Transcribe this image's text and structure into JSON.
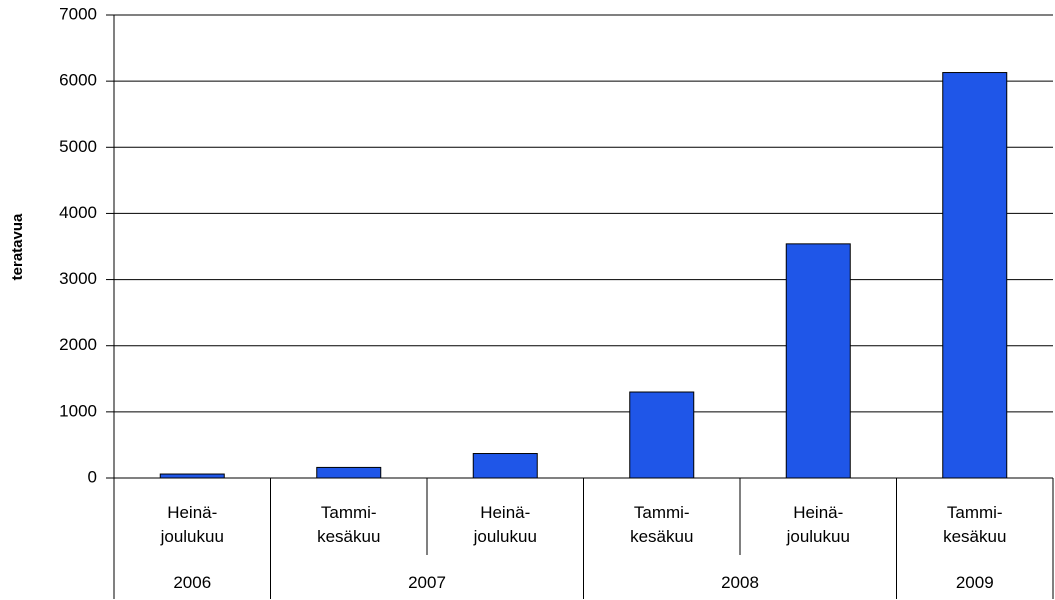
{
  "chart_data": {
    "type": "bar",
    "y_label": "teratavua",
    "categories": [
      "Heinä-\njoulukuu",
      "Tammi-\nkesäkuu",
      "Heinä-\njoulukuu",
      "Tammi-\nkesäkuu",
      "Heinä-\njoulukuu",
      "Tammi-\nkesäkuu"
    ],
    "groups": [
      {
        "label": "2006",
        "span": 1
      },
      {
        "label": "2007",
        "span": 2
      },
      {
        "label": "2008",
        "span": 2
      },
      {
        "label": "2009",
        "span": 1
      }
    ],
    "values": [
      60,
      160,
      370,
      1300,
      3540,
      6130
    ],
    "color": "#1f56e8",
    "ylim": [
      0,
      7000
    ],
    "yticks": [
      0,
      1000,
      2000,
      3000,
      4000,
      5000,
      6000,
      7000
    ],
    "grid": true
  }
}
